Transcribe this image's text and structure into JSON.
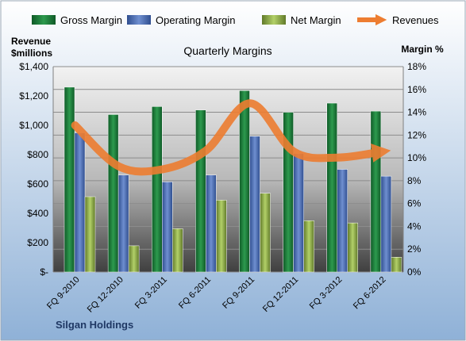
{
  "chart_data": {
    "type": "bar",
    "title": "Quarterly Margins",
    "company": "Silgan Holdings",
    "ylabel_left": "Revenue\n$millions",
    "ylabel_right": "Margin %",
    "categories": [
      "FQ 9-2010",
      "FQ 12-2010",
      "FQ 3-2011",
      "FQ 6-2011",
      "FQ 9-2011",
      "FQ 12-2011",
      "FQ 3-2012",
      "FQ 6-2012"
    ],
    "series": [
      {
        "name": "Gross Margin",
        "axis": "right",
        "color": "#1f7a3c",
        "values": [
          16.2,
          13.8,
          14.5,
          14.2,
          15.9,
          14.0,
          14.8,
          14.1
        ]
      },
      {
        "name": "Operating Margin",
        "axis": "right",
        "color": "#4f6fb5",
        "values": [
          12.2,
          8.5,
          7.9,
          8.5,
          11.9,
          10.4,
          9.0,
          8.4
        ]
      },
      {
        "name": "Net Margin",
        "axis": "right",
        "color": "#8fb04a",
        "values": [
          6.6,
          2.3,
          3.8,
          6.3,
          6.9,
          4.5,
          4.3,
          1.3
        ]
      },
      {
        "name": "Revenues",
        "axis": "left",
        "type": "line",
        "color": "#ed7d31",
        "values": [
          1000,
          720,
          700,
          830,
          1150,
          820,
          780,
          820
        ]
      }
    ],
    "left_axis": {
      "min": 0,
      "max": 1400,
      "ticks": [
        "$-",
        "$200",
        "$400",
        "$600",
        "$800",
        "$1,000",
        "$1,200",
        "$1,400"
      ]
    },
    "right_axis": {
      "min": 0,
      "max": 18,
      "ticks": [
        "0%",
        "2%",
        "4%",
        "6%",
        "8%",
        "10%",
        "12%",
        "14%",
        "16%",
        "18%"
      ]
    },
    "legend_position": "top",
    "grid": true
  }
}
